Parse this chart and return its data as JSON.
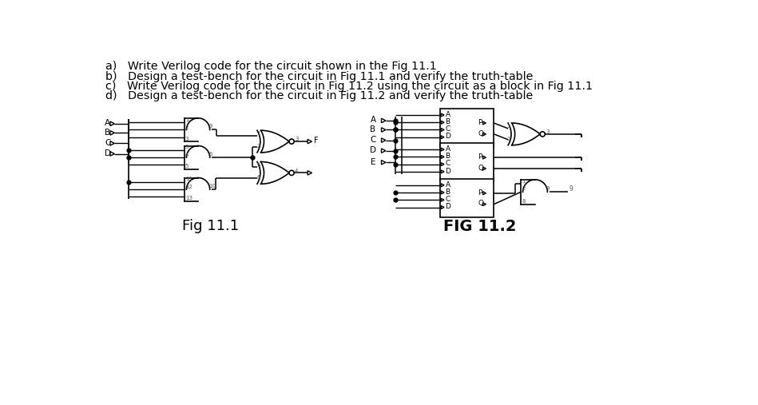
{
  "title_lines": [
    "a)   Write Verilog code for the circuit shown in the Fig 11.1",
    "b)   Design a test-bench for the circuit in Fig 11.1 and verify the truth-table",
    "c)   Write Verilog code for the circuit in Fig 11.2 using the circuit as a block in Fig 11.1",
    "d)   Design a test-bench for the circuit in Fig 11.2 and verify the truth-table"
  ],
  "fig11_1_label": "Fig 11.1",
  "fig11_2_label": "FIG 11.2",
  "bg_color": "#ffffff",
  "lc": "#000000",
  "tc": "#000000"
}
